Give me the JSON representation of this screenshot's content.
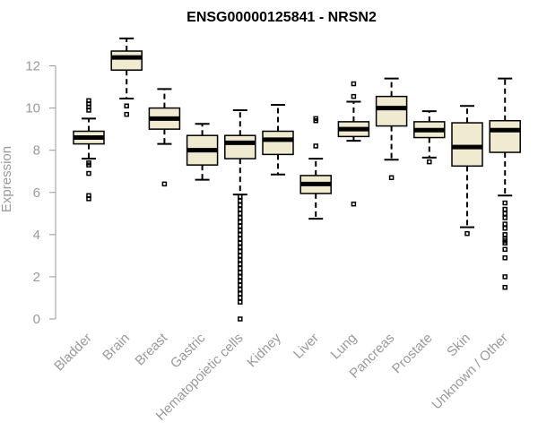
{
  "chart_data": {
    "type": "box",
    "title": "ENSG00000125841 - NRSN2",
    "xlabel": "",
    "ylabel": "Expression",
    "ylim": [
      0,
      13.4
    ],
    "yticks": [
      0,
      2,
      4,
      6,
      8,
      10,
      12
    ],
    "grid": false,
    "categories": [
      "Bladder",
      "Brain",
      "Breast",
      "Gastric",
      "Hematopoietic cells",
      "Kidney",
      "Liver",
      "Lung",
      "Pancreas",
      "Prostate",
      "Skin",
      "Unknown / Other"
    ],
    "boxes": [
      {
        "name": "Bladder",
        "whisker_low": 7.6,
        "q1": 8.3,
        "median": 8.6,
        "q3": 8.9,
        "whisker_high": 9.5,
        "outliers": [
          5.7,
          5.85,
          6.9,
          7.3,
          7.4,
          9.9,
          10.05,
          10.2,
          10.35
        ]
      },
      {
        "name": "Brain",
        "whisker_low": 10.45,
        "q1": 11.8,
        "median": 12.4,
        "q3": 12.7,
        "whisker_high": 13.3,
        "outliers": [
          9.7,
          10.1
        ]
      },
      {
        "name": "Breast",
        "whisker_low": 8.3,
        "q1": 9.0,
        "median": 9.5,
        "q3": 10.0,
        "whisker_high": 10.9,
        "outliers": [
          6.4
        ]
      },
      {
        "name": "Gastric",
        "whisker_low": 6.6,
        "q1": 7.3,
        "median": 8.0,
        "q3": 8.7,
        "whisker_high": 9.25,
        "outliers": []
      },
      {
        "name": "Hematopoietic cells",
        "whisker_low": 5.9,
        "q1": 7.6,
        "median": 8.35,
        "q3": 8.7,
        "whisker_high": 9.9,
        "outliers": [
          0.0,
          0.8,
          1.0,
          1.2,
          1.4,
          1.6,
          1.8,
          2.0,
          2.2,
          2.4,
          2.6,
          2.8,
          3.0,
          3.2,
          3.4,
          3.6,
          3.8,
          4.0,
          4.2,
          4.4,
          4.6,
          4.8,
          5.0,
          5.2,
          5.4,
          5.6,
          5.8
        ]
      },
      {
        "name": "Kidney",
        "whisker_low": 6.85,
        "q1": 7.8,
        "median": 8.5,
        "q3": 8.9,
        "whisker_high": 10.15,
        "outliers": []
      },
      {
        "name": "Liver",
        "whisker_low": 4.75,
        "q1": 5.95,
        "median": 6.4,
        "q3": 6.8,
        "whisker_high": 7.6,
        "outliers": [
          8.2,
          9.4,
          9.5
        ]
      },
      {
        "name": "Lung",
        "whisker_low": 8.45,
        "q1": 8.65,
        "median": 9.0,
        "q3": 9.35,
        "whisker_high": 10.3,
        "outliers": [
          5.45,
          10.55,
          11.15
        ]
      },
      {
        "name": "Pancreas",
        "whisker_low": 7.55,
        "q1": 9.15,
        "median": 10.0,
        "q3": 10.55,
        "whisker_high": 11.4,
        "outliers": [
          6.7
        ]
      },
      {
        "name": "Prostate",
        "whisker_low": 7.65,
        "q1": 8.6,
        "median": 8.95,
        "q3": 9.35,
        "whisker_high": 9.85,
        "outliers": [
          7.45
        ]
      },
      {
        "name": "Skin",
        "whisker_low": 4.35,
        "q1": 7.25,
        "median": 8.15,
        "q3": 9.3,
        "whisker_high": 10.1,
        "outliers": [
          4.05
        ]
      },
      {
        "name": "Unknown / Other",
        "whisker_low": 5.85,
        "q1": 7.9,
        "median": 8.95,
        "q3": 9.4,
        "whisker_high": 11.4,
        "outliers": [
          1.5,
          2.0,
          2.9,
          3.3,
          3.6,
          3.7,
          3.8,
          4.0,
          4.3,
          4.5,
          4.8,
          5.0,
          5.2,
          5.5
        ]
      }
    ]
  }
}
